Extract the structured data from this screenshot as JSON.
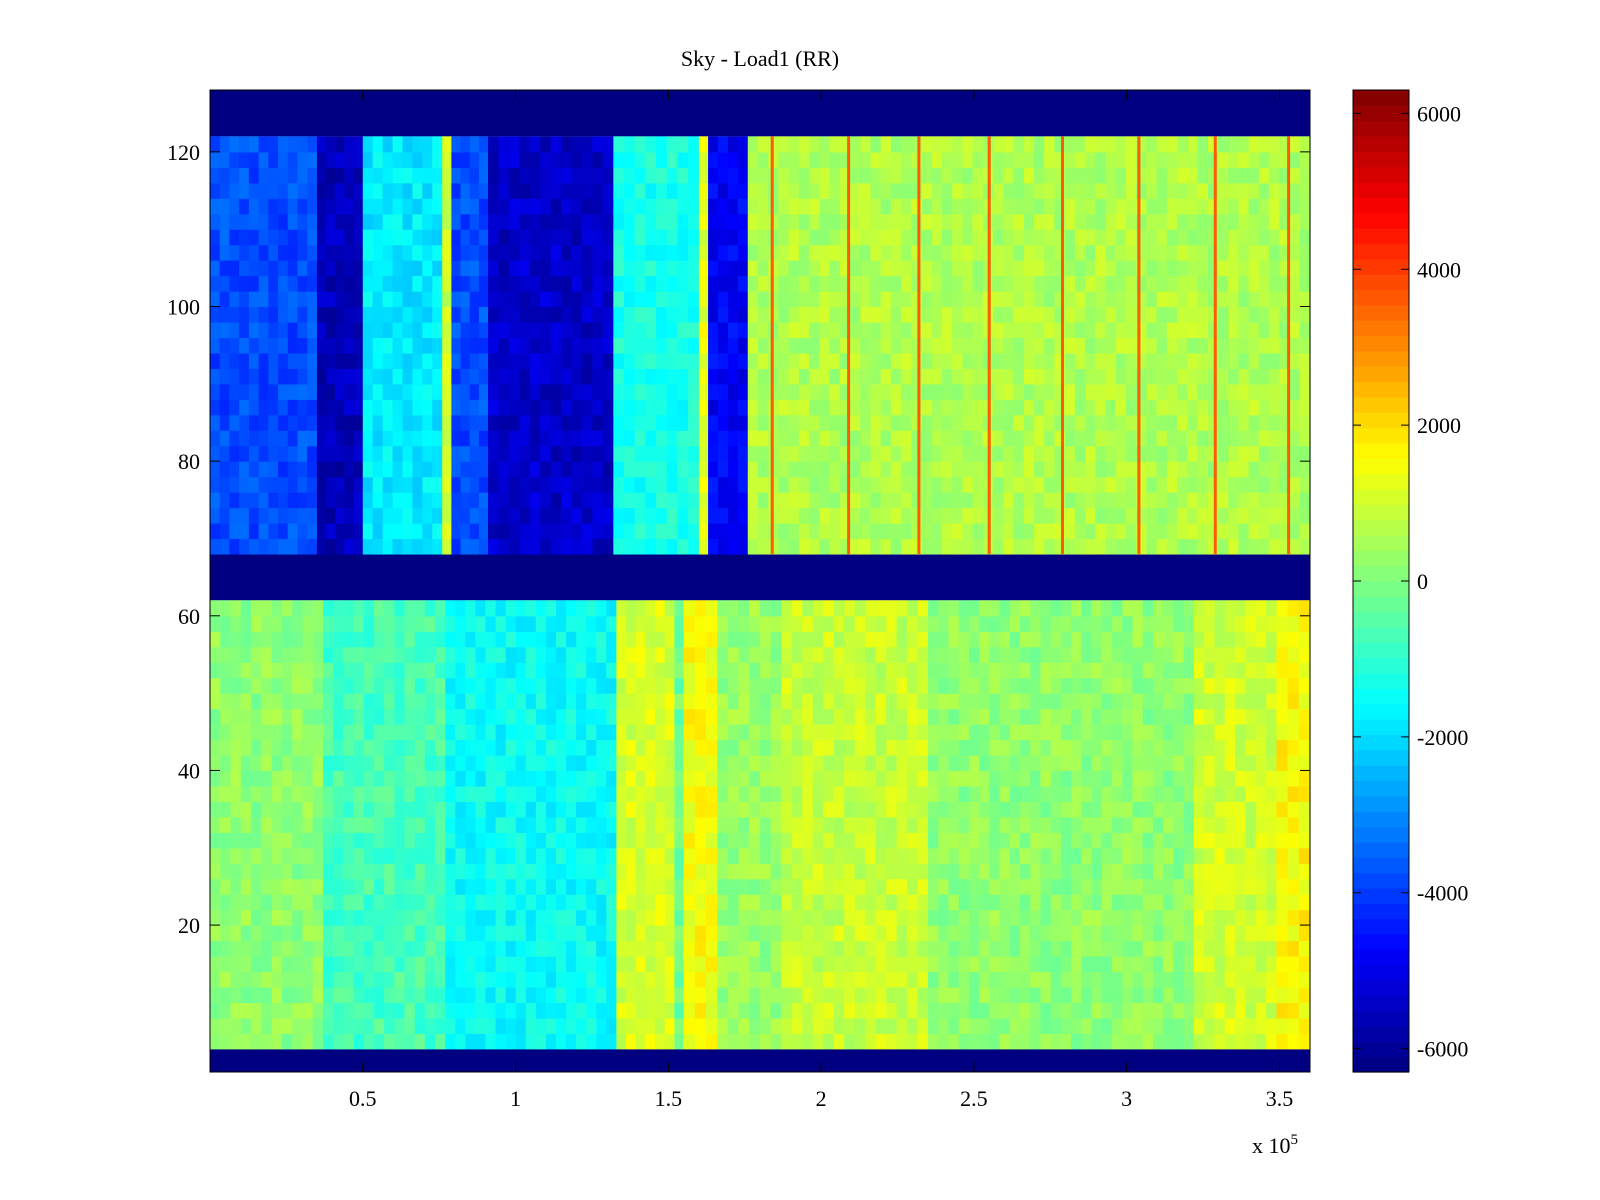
{
  "chart_data": {
    "type": "heatmap",
    "title": "Sky - Load1 (RR)",
    "xlabel": "",
    "ylabel": "",
    "x_multiplier_label": "x 10",
    "x_multiplier_exponent": "5",
    "xlim": [
      0,
      3.6
    ],
    "ylim": [
      1,
      128
    ],
    "x_ticks": [
      {
        "value": 0.5,
        "label": "0.5"
      },
      {
        "value": 1,
        "label": "1"
      },
      {
        "value": 1.5,
        "label": "1.5"
      },
      {
        "value": 2,
        "label": "2"
      },
      {
        "value": 2.5,
        "label": "2.5"
      },
      {
        "value": 3,
        "label": "3"
      },
      {
        "value": 3.5,
        "label": "3.5"
      }
    ],
    "y_ticks": [
      {
        "value": 20,
        "label": "20"
      },
      {
        "value": 40,
        "label": "40"
      },
      {
        "value": 60,
        "label": "60"
      },
      {
        "value": 80,
        "label": "80"
      },
      {
        "value": 100,
        "label": "100"
      },
      {
        "value": 120,
        "label": "120"
      }
    ],
    "colorbar": {
      "colormap": "jet",
      "clim": [
        -6300,
        6300
      ],
      "ticks": [
        {
          "value": -6000,
          "label": "-6000"
        },
        {
          "value": -4000,
          "label": "-4000"
        },
        {
          "value": -2000,
          "label": "-2000"
        },
        {
          "value": 0,
          "label": "0"
        },
        {
          "value": 2000,
          "label": "2000"
        },
        {
          "value": 4000,
          "label": "4000"
        },
        {
          "value": 6000,
          "label": "6000"
        }
      ]
    },
    "masked_row_bands": [
      {
        "from": 1,
        "to": 4,
        "value": -6300
      },
      {
        "from": 62,
        "to": 68,
        "value": -6300
      },
      {
        "from": 122,
        "to": 128,
        "value": -6300
      }
    ],
    "data_blocks": [
      {
        "rows": [
          4,
          62
        ],
        "x_segments": [
          {
            "x0": 0.0,
            "x1": 0.37,
            "value": 200
          },
          {
            "x0": 0.37,
            "x1": 0.77,
            "value": -700
          },
          {
            "x0": 0.77,
            "x1": 1.33,
            "value": -1500
          },
          {
            "x0": 1.33,
            "x1": 1.52,
            "value": 1100
          },
          {
            "x0": 1.52,
            "x1": 1.55,
            "value": -200
          },
          {
            "x0": 1.55,
            "x1": 1.66,
            "value": 1500
          },
          {
            "x0": 1.66,
            "x1": 1.87,
            "value": 300
          },
          {
            "x0": 1.87,
            "x1": 2.35,
            "value": 900
          },
          {
            "x0": 2.35,
            "x1": 3.22,
            "value": 200
          },
          {
            "x0": 3.22,
            "x1": 3.49,
            "value": 1000
          },
          {
            "x0": 3.49,
            "x1": 3.6,
            "value": 1600
          }
        ]
      },
      {
        "rows": [
          68,
          122
        ],
        "x_segments": [
          {
            "x0": 0.0,
            "x1": 0.35,
            "value": -3800
          },
          {
            "x0": 0.35,
            "x1": 0.5,
            "value": -5600
          },
          {
            "x0": 0.5,
            "x1": 0.76,
            "value": -1800
          },
          {
            "x0": 0.76,
            "x1": 0.79,
            "value": 1000
          },
          {
            "x0": 0.79,
            "x1": 0.91,
            "value": -3800
          },
          {
            "x0": 0.91,
            "x1": 1.32,
            "value": -5400
          },
          {
            "x0": 1.32,
            "x1": 1.6,
            "value": -1300
          },
          {
            "x0": 1.6,
            "x1": 1.63,
            "value": 1300
          },
          {
            "x0": 1.63,
            "x1": 1.76,
            "value": -4800
          },
          {
            "x0": 1.76,
            "x1": 3.6,
            "value": 600
          }
        ]
      }
    ],
    "spike_lines": [
      {
        "x": 1.84,
        "rows": [
          68,
          122
        ],
        "value": 3600
      },
      {
        "x": 2.09,
        "rows": [
          68,
          122
        ],
        "value": 3600
      },
      {
        "x": 2.32,
        "rows": [
          68,
          122
        ],
        "value": 3600
      },
      {
        "x": 2.55,
        "rows": [
          68,
          122
        ],
        "value": 3600
      },
      {
        "x": 2.79,
        "rows": [
          68,
          122
        ],
        "value": 3600
      },
      {
        "x": 3.04,
        "rows": [
          68,
          122
        ],
        "value": 3600
      },
      {
        "x": 3.29,
        "rows": [
          68,
          122
        ],
        "value": 3600
      },
      {
        "x": 3.53,
        "rows": [
          68,
          122
        ],
        "value": 3600
      }
    ]
  }
}
